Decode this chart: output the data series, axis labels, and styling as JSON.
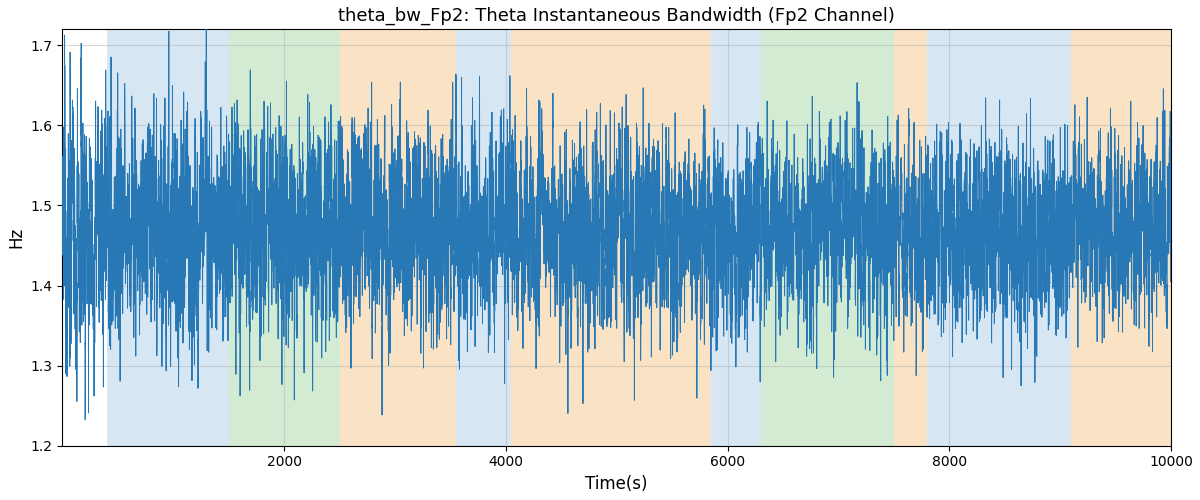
{
  "title": "theta_bw_Fp2: Theta Instantaneous Bandwidth (Fp2 Channel)",
  "xlabel": "Time(s)",
  "ylabel": "Hz",
  "xlim": [
    0,
    10000
  ],
  "ylim": [
    1.2,
    1.72
  ],
  "line_color": "#2878b5",
  "line_width": 0.7,
  "background_color": "#ffffff",
  "grid_color": "#b0b0b0",
  "grid_alpha": 0.5,
  "yticks": [
    1.2,
    1.3,
    1.4,
    1.5,
    1.6,
    1.7
  ],
  "xticks": [
    2000,
    4000,
    6000,
    8000,
    10000
  ],
  "bands": [
    {
      "xmin": 400,
      "xmax": 1500,
      "color": "#b0cfe8",
      "alpha": 0.5
    },
    {
      "xmin": 1500,
      "xmax": 2500,
      "color": "#a8d8a8",
      "alpha": 0.5
    },
    {
      "xmin": 2500,
      "xmax": 3550,
      "color": "#f5c98a",
      "alpha": 0.5
    },
    {
      "xmin": 3550,
      "xmax": 4050,
      "color": "#b0cfe8",
      "alpha": 0.5
    },
    {
      "xmin": 4050,
      "xmax": 5850,
      "color": "#f5c98a",
      "alpha": 0.5
    },
    {
      "xmin": 5850,
      "xmax": 6300,
      "color": "#b0cfe8",
      "alpha": 0.5
    },
    {
      "xmin": 6300,
      "xmax": 7500,
      "color": "#a8d8a8",
      "alpha": 0.5
    },
    {
      "xmin": 7500,
      "xmax": 7800,
      "color": "#f5c98a",
      "alpha": 0.5
    },
    {
      "xmin": 7800,
      "xmax": 9100,
      "color": "#b0cfe8",
      "alpha": 0.5
    },
    {
      "xmin": 9100,
      "xmax": 10200,
      "color": "#f5c98a",
      "alpha": 0.5
    }
  ],
  "seed": 12345,
  "n_points": 10000,
  "signal_mean": 1.47,
  "title_fontsize": 13
}
